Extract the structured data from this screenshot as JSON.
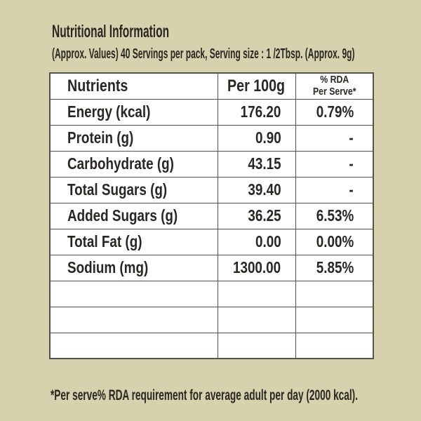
{
  "colors": {
    "background": "#d6d2ad",
    "text": "#2a2722",
    "table_border": "#55524b",
    "cell_background": "#ffffff"
  },
  "header": {
    "title": "Nutritional Information",
    "subtitle": "(Approx. Values) 40 Servings per pack, Serving size : 1 /2Tbsp. (Approx. 9g)"
  },
  "table": {
    "columns": [
      {
        "label": "Nutrients"
      },
      {
        "label": "Per 100g"
      },
      {
        "label_line1": "% RDA",
        "label_line2": "Per Serve*"
      }
    ],
    "rows": [
      {
        "nutrient": "Energy (kcal)",
        "per_100g": "176.20",
        "rda_per_serve": "0.79%"
      },
      {
        "nutrient": "Protein (g)",
        "per_100g": "0.90",
        "rda_per_serve": "-"
      },
      {
        "nutrient": "Carbohydrate (g)",
        "per_100g": "43.15",
        "rda_per_serve": "-"
      },
      {
        "nutrient": "Total Sugars (g)",
        "per_100g": "39.40",
        "rda_per_serve": "-"
      },
      {
        "nutrient": "Added Sugars (g)",
        "per_100g": "36.25",
        "rda_per_serve": "6.53%"
      },
      {
        "nutrient": "Total Fat (g)",
        "per_100g": "0.00",
        "rda_per_serve": "0.00%"
      },
      {
        "nutrient": "Sodium (mg)",
        "per_100g": "1300.00",
        "rda_per_serve": "5.85%"
      }
    ],
    "empty_row_count": 3
  },
  "footnote": "*Per serve% RDA requirement for average adult per day (2000 kcal)."
}
